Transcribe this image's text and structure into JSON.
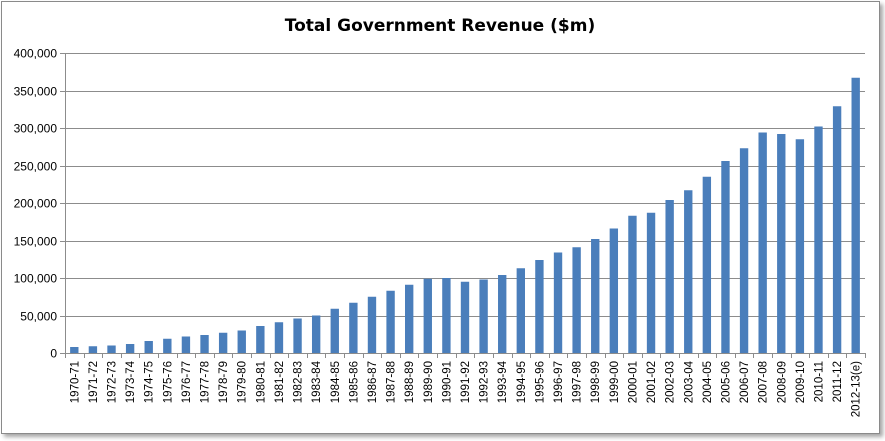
{
  "chart_data": {
    "type": "bar",
    "title": "Total Government Revenue ($m)",
    "xlabel": "",
    "ylabel": "",
    "ylim": [
      0,
      400000
    ],
    "yticks": [
      0,
      50000,
      100000,
      150000,
      200000,
      250000,
      300000,
      350000,
      400000
    ],
    "ytick_labels": [
      "0",
      "50,000",
      "100,000",
      "150,000",
      "200,000",
      "250,000",
      "300,000",
      "350,000",
      "400,000"
    ],
    "grid": true,
    "legend": "none",
    "bar_color": "#4a7ebb",
    "categories": [
      "1970-71",
      "1971-72",
      "1972-73",
      "1973-74",
      "1974-75",
      "1975-76",
      "1976-77",
      "1977-78",
      "1978-79",
      "1979-80",
      "1980-81",
      "1981-82",
      "1982-83",
      "1983-84",
      "1984-85",
      "1985-86",
      "1986-87",
      "1987-88",
      "1988-89",
      "1989-90",
      "1990-91",
      "1991-92",
      "1992-93",
      "1993-94",
      "1994-95",
      "1995-96",
      "1996-97",
      "1997-98",
      "1998-99",
      "1999-00",
      "2000-01",
      "2001-02",
      "2002-03",
      "2003-04",
      "2004-05",
      "2005-06",
      "2006-07",
      "2007-08",
      "2008-09",
      "2009-10",
      "2010-11",
      "2011-12",
      "2012-13(e)"
    ],
    "values": [
      8000,
      9000,
      10000,
      12000,
      16000,
      19000,
      22000,
      24000,
      27000,
      30000,
      36000,
      41000,
      46000,
      50000,
      59000,
      67000,
      75000,
      83000,
      91000,
      99000,
      100000,
      95000,
      98000,
      104000,
      113000,
      124000,
      134000,
      141000,
      152000,
      166000,
      183000,
      187000,
      204000,
      217000,
      235000,
      256000,
      273000,
      294000,
      292000,
      285000,
      302000,
      329000,
      367000
    ]
  }
}
